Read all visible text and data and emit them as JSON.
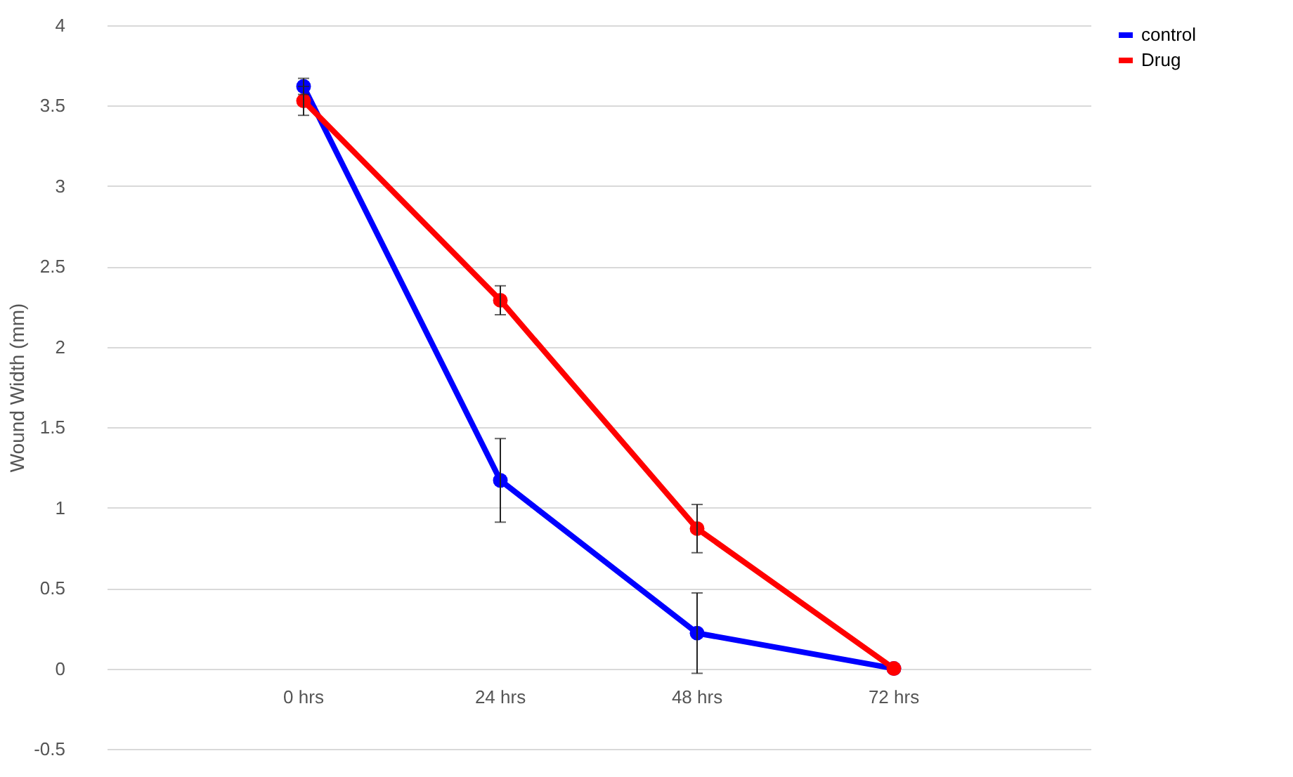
{
  "chart_data": {
    "type": "line",
    "ylabel": "Wound Width (mm)",
    "categories": [
      "0 hrs",
      "24 hrs",
      "48 hrs",
      "72 hrs"
    ],
    "series": [
      {
        "name": "control",
        "color": "#0000ff",
        "values": [
          3.62,
          1.17,
          0.22,
          0
        ],
        "errors": [
          0.05,
          0.26,
          0.25,
          null
        ]
      },
      {
        "name": "Drug",
        "color": "#ff0000",
        "values": [
          3.53,
          2.29,
          0.87,
          0
        ],
        "errors": [
          0.09,
          0.09,
          0.15,
          null
        ]
      }
    ],
    "ylim": [
      -0.5,
      4
    ],
    "yticks": [
      -0.5,
      0,
      0.5,
      1,
      1.5,
      2,
      2.5,
      3,
      3.5,
      4
    ],
    "grid": "y",
    "legend": "right",
    "marker": "circle",
    "line_style": "solid"
  }
}
